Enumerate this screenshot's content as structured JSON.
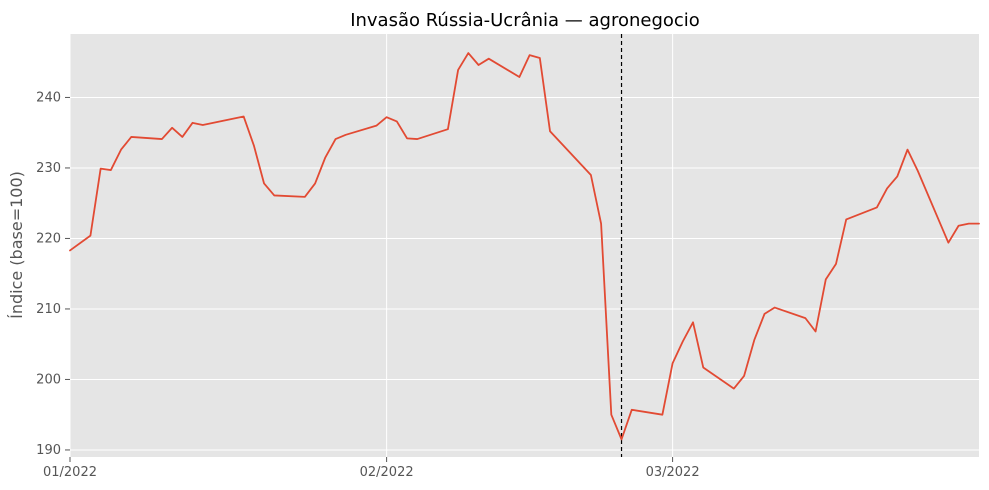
{
  "chart_data": {
    "type": "line",
    "title": "Invasão Rússia-Ucrânia — agronegocio",
    "xlabel": "",
    "ylabel": "Índice (base=100)",
    "xlim": [
      "2022-01-01",
      "2022-03-31"
    ],
    "ylim": [
      189,
      249
    ],
    "x_ticks": [
      {
        "date": "2022-01-01",
        "label": "01/2022"
      },
      {
        "date": "2022-02-01",
        "label": "02/2022"
      },
      {
        "date": "2022-03-01",
        "label": "03/2022"
      }
    ],
    "y_ticks": [
      190,
      200,
      210,
      220,
      230,
      240
    ],
    "grid": true,
    "style": {
      "background": "#e5e5e5",
      "grid_color": "#ffffff",
      "line_color": "#e24a33",
      "tick_color": "#555555",
      "title_color": "#000000",
      "event_line_color": "#000000"
    },
    "annotations": [
      {
        "type": "vertical_dashed_line",
        "date": "2022-02-24"
      }
    ],
    "series": [
      {
        "x": [
          "2022-01-01",
          "2022-01-03",
          "2022-01-04",
          "2022-01-05",
          "2022-01-06",
          "2022-01-07",
          "2022-01-10",
          "2022-01-11",
          "2022-01-12",
          "2022-01-13",
          "2022-01-14",
          "2022-01-18",
          "2022-01-19",
          "2022-01-20",
          "2022-01-21",
          "2022-01-24",
          "2022-01-25",
          "2022-01-26",
          "2022-01-27",
          "2022-01-28",
          "2022-01-31",
          "2022-02-01",
          "2022-02-02",
          "2022-02-03",
          "2022-02-04",
          "2022-02-07",
          "2022-02-08",
          "2022-02-09",
          "2022-02-10",
          "2022-02-11",
          "2022-02-14",
          "2022-02-15",
          "2022-02-16",
          "2022-02-17",
          "2022-02-21",
          "2022-02-22",
          "2022-02-23",
          "2022-02-24",
          "2022-02-25",
          "2022-02-28",
          "2022-03-01",
          "2022-03-02",
          "2022-03-03",
          "2022-03-04",
          "2022-03-07",
          "2022-03-08",
          "2022-03-09",
          "2022-03-10",
          "2022-03-11",
          "2022-03-14",
          "2022-03-15",
          "2022-03-16",
          "2022-03-17",
          "2022-03-18",
          "2022-03-21",
          "2022-03-22",
          "2022-03-23",
          "2022-03-24",
          "2022-03-25",
          "2022-03-28",
          "2022-03-29",
          "2022-03-30",
          "2022-03-31"
        ],
        "values": [
          218.3,
          220.4,
          229.9,
          229.7,
          232.6,
          234.4,
          234.1,
          235.7,
          234.4,
          236.4,
          236.1,
          237.3,
          233.2,
          227.8,
          226.1,
          225.9,
          227.8,
          231.5,
          234.1,
          234.7,
          236.0,
          237.2,
          236.6,
          234.2,
          234.1,
          235.5,
          243.9,
          246.3,
          244.6,
          245.5,
          242.9,
          246.0,
          245.6,
          235.2,
          229.0,
          222.1,
          195.0,
          191.5,
          195.7,
          195.0,
          202.3,
          205.4,
          208.1,
          201.7,
          198.7,
          200.5,
          205.6,
          209.3,
          210.2,
          208.7,
          206.8,
          214.2,
          216.4,
          222.7,
          224.4,
          227.1,
          228.8,
          232.6,
          229.6,
          219.4,
          221.8,
          222.1,
          222.1
        ]
      }
    ]
  }
}
